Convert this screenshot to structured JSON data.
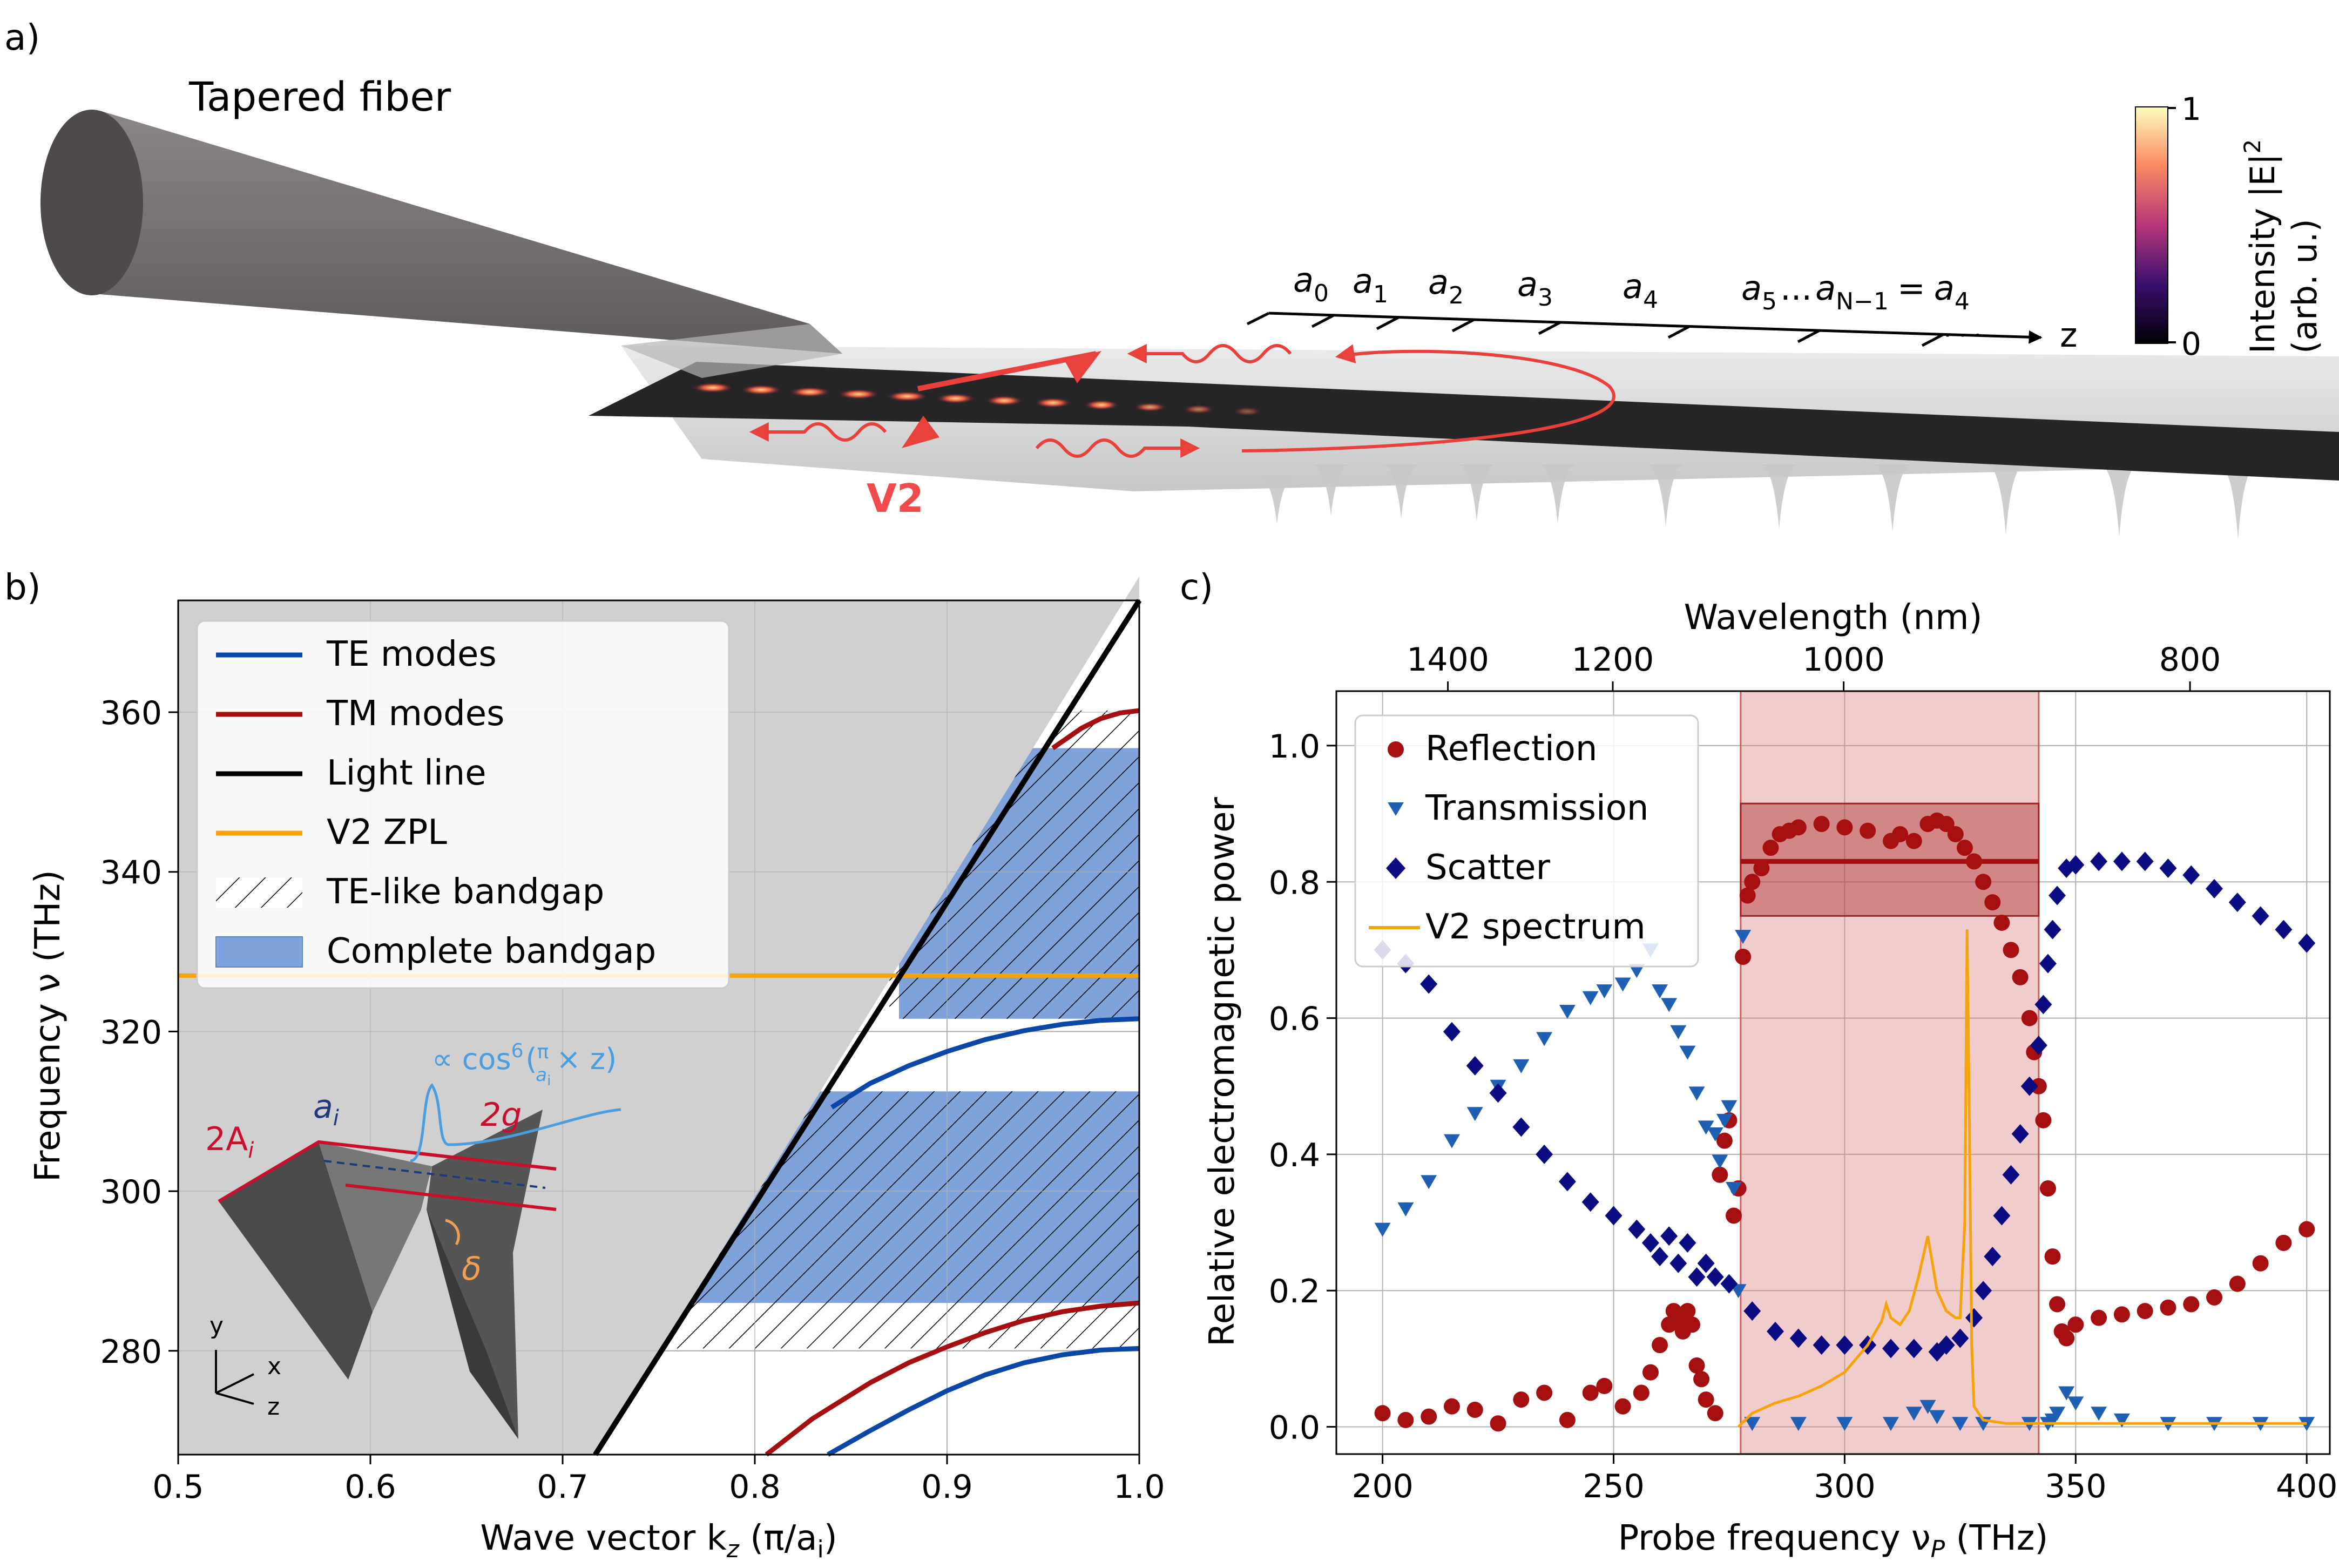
{
  "panel_labels": {
    "a": "a)",
    "b": "b)",
    "c": "c)"
  },
  "panel_a": {
    "fiber_label": "Tapered fiber",
    "emitter_label": "V2",
    "axis_label": "z",
    "ellipsis": "· · ·",
    "lattice_labels": [
      {
        "base": "a",
        "sub": "0"
      },
      {
        "base": "a",
        "sub": "1"
      },
      {
        "base": "a",
        "sub": "2"
      },
      {
        "base": "a",
        "sub": "3"
      },
      {
        "base": "a",
        "sub": "4"
      }
    ],
    "lattice_tail": {
      "a5": "a",
      "a5_sub": "5",
      "dots": "...",
      "aN": "a",
      "aN_sub": "N−1",
      "eq": "=",
      "a4": "a",
      "a4_sub": "4"
    },
    "colorbar": {
      "max_label": "1",
      "min_label": "0",
      "title_line1": "Intensity |E|",
      "title_sup": "2",
      "title_line2": "(arb. u.)"
    },
    "colors": {
      "fiber": "#7a7575",
      "arrow": "#e8413c",
      "v2_text": "#f04a4a"
    }
  },
  "chart_data": [
    {
      "id": "band_diagram",
      "type": "line",
      "xlabel": {
        "main": "Wave vector k",
        "sub": "z",
        "rest": " (π/a",
        "sub2": "i",
        "end": ")"
      },
      "ylabel": "Frequency ν (THz)",
      "xlim": [
        0.5,
        1.0
      ],
      "ylim": [
        267,
        374
      ],
      "xticks": [
        0.5,
        0.6,
        0.7,
        0.8,
        0.9,
        1.0
      ],
      "xtick_labels": [
        "0.5",
        "0.6",
        "0.7",
        "0.8",
        "0.9",
        "1.0"
      ],
      "yticks": [
        280,
        300,
        320,
        340,
        360
      ],
      "ytick_labels": [
        "280",
        "300",
        "320",
        "340",
        "360"
      ],
      "grid": true,
      "light_line": {
        "x": [
          0.717,
          1.0
        ],
        "y": [
          267,
          377
        ]
      },
      "series": [
        {
          "name": "TE band 1",
          "kind": "TE",
          "x": [
            0.838,
            0.86,
            0.88,
            0.9,
            0.92,
            0.94,
            0.96,
            0.98,
            1.0
          ],
          "y": [
            267.0,
            270.0,
            272.6,
            275.0,
            277.0,
            278.5,
            279.5,
            280.1,
            280.3
          ]
        },
        {
          "name": "TM band 1",
          "kind": "TM",
          "x": [
            0.806,
            0.83,
            0.86,
            0.88,
            0.9,
            0.92,
            0.94,
            0.96,
            0.98,
            1.0
          ],
          "y": [
            267.0,
            271.5,
            276.0,
            278.5,
            280.5,
            282.3,
            283.8,
            284.9,
            285.6,
            286.0
          ]
        },
        {
          "name": "TE band 2",
          "kind": "TE",
          "x": [
            0.84,
            0.86,
            0.88,
            0.9,
            0.92,
            0.94,
            0.96,
            0.98,
            1.0
          ],
          "y": [
            310.5,
            313.5,
            315.7,
            317.5,
            319.0,
            320.1,
            320.9,
            321.4,
            321.6
          ]
        },
        {
          "name": "TM band 2",
          "kind": "TM",
          "x": [
            0.955,
            0.97,
            0.98,
            0.99,
            1.0
          ],
          "y": [
            355.5,
            358.0,
            359.2,
            359.9,
            360.2
          ]
        }
      ],
      "zpl": {
        "y": 327.0,
        "x": [
          0.5,
          1.0
        ]
      },
      "te_bandgaps": [
        {
          "x0": 0.735,
          "x1": 1.0,
          "y0": 280.3,
          "y1": 312.5
        },
        {
          "x0": 0.87,
          "x1": 1.0,
          "y0": 321.6,
          "y1": 360.2
        }
      ],
      "complete_bandgaps": [
        {
          "x0": 0.76,
          "x1": 1.0,
          "y0": 286.0,
          "y1": 312.5
        },
        {
          "x0": 0.875,
          "x1": 1.0,
          "y0": 321.6,
          "y1": 355.5
        }
      ],
      "legend": {
        "placement": "top-left",
        "entries": [
          "TE modes",
          "TM modes",
          "Light line",
          "V2 ZPL",
          "TE-like bandgap",
          "Complete bandgap"
        ]
      },
      "inset": {
        "annotation_cos": {
          "pre": "∝ cos",
          "sup": "6",
          "frac_num": "π",
          "frac_den_base": "a",
          "frac_den_sub": "i",
          "post": "× z"
        },
        "label_ai": {
          "base": "a",
          "sub": "i"
        },
        "label_2A": {
          "pre": "2A",
          "sub": "i"
        },
        "label_2g": "2g",
        "label_delta": "δ",
        "axes": {
          "y": "y",
          "x": "x",
          "z": "z"
        }
      },
      "colors": {
        "te": "#0a47a7",
        "tm": "#a50f10",
        "light": "#000000",
        "zpl": "#f5a30a",
        "complete": "#7ea2d9",
        "background": "#d0d0d0"
      }
    },
    {
      "id": "spectrum",
      "type": "scatter",
      "xlabel": {
        "main": "Probe frequency ν",
        "sub": "P",
        "rest": " (THz)"
      },
      "ylabel": "Relative electromagnetic power",
      "top_xlabel": "Wavelength (nm)",
      "xlim": [
        190,
        405
      ],
      "ylim": [
        -0.04,
        1.08
      ],
      "xticks": [
        200,
        250,
        300,
        350,
        400
      ],
      "xtick_labels": [
        "200",
        "250",
        "300",
        "350",
        "400"
      ],
      "yticks": [
        0.0,
        0.2,
        0.4,
        0.6,
        0.8,
        1.0
      ],
      "ytick_labels": [
        "0.0",
        "0.2",
        "0.4",
        "0.6",
        "0.8",
        "1.0"
      ],
      "top_ticks": [
        1400,
        1200,
        1000,
        800
      ],
      "top_tick_labels": [
        "1400",
        "1200",
        "1000",
        "800"
      ],
      "grid": true,
      "bandgap_shade": {
        "x0": 277.5,
        "x1": 342.0
      },
      "reflection_band": {
        "x0": 277.5,
        "x1": 342.0,
        "y0": 0.75,
        "y1": 0.915,
        "mean": 0.83
      },
      "series": [
        {
          "name": "Reflection",
          "marker": "circle",
          "color": "#a50f10",
          "x": [
            200,
            205,
            210,
            215,
            220,
            225,
            230,
            235,
            240,
            245,
            248,
            252,
            256,
            258,
            260,
            262,
            263,
            264,
            265,
            266,
            267,
            268,
            269,
            270,
            272,
            273,
            274,
            275,
            276,
            277,
            278,
            279,
            280,
            282,
            284,
            286,
            288,
            290,
            295,
            300,
            305,
            310,
            312,
            315,
            318,
            320,
            322,
            324,
            326,
            328,
            330,
            332,
            334,
            336,
            338,
            340,
            341,
            342,
            343,
            344,
            345,
            346,
            347,
            348,
            350,
            355,
            360,
            365,
            370,
            375,
            380,
            385,
            390,
            395,
            400
          ],
          "y": [
            0.02,
            0.01,
            0.015,
            0.03,
            0.025,
            0.005,
            0.04,
            0.05,
            0.01,
            0.05,
            0.06,
            0.03,
            0.05,
            0.08,
            0.12,
            0.15,
            0.17,
            0.16,
            0.14,
            0.17,
            0.15,
            0.09,
            0.07,
            0.04,
            0.02,
            0.37,
            0.42,
            0.45,
            0.31,
            0.35,
            0.69,
            0.78,
            0.8,
            0.82,
            0.85,
            0.87,
            0.875,
            0.88,
            0.885,
            0.88,
            0.875,
            0.86,
            0.87,
            0.86,
            0.885,
            0.89,
            0.885,
            0.87,
            0.85,
            0.83,
            0.8,
            0.77,
            0.74,
            0.7,
            0.66,
            0.6,
            0.55,
            0.5,
            0.45,
            0.35,
            0.25,
            0.18,
            0.14,
            0.13,
            0.15,
            0.16,
            0.165,
            0.17,
            0.175,
            0.18,
            0.19,
            0.21,
            0.24,
            0.27,
            0.29
          ]
        },
        {
          "name": "Transmission",
          "marker": "triangle-down",
          "color": "#1f5fb4",
          "x": [
            200,
            205,
            210,
            215,
            220,
            225,
            230,
            235,
            240,
            245,
            248,
            252,
            255,
            258,
            260,
            262,
            264,
            266,
            268,
            270,
            272,
            273,
            274,
            275,
            276,
            277,
            278,
            280,
            290,
            300,
            310,
            315,
            318,
            320,
            325,
            330,
            340,
            344,
            345,
            346,
            348,
            350,
            355,
            360,
            370,
            380,
            390,
            400
          ],
          "y": [
            0.29,
            0.32,
            0.36,
            0.42,
            0.46,
            0.5,
            0.53,
            0.57,
            0.61,
            0.63,
            0.64,
            0.65,
            0.67,
            0.7,
            0.64,
            0.62,
            0.58,
            0.55,
            0.49,
            0.44,
            0.43,
            0.39,
            0.45,
            0.47,
            0.35,
            0.2,
            0.72,
            0.005,
            0.005,
            0.005,
            0.005,
            0.02,
            0.03,
            0.015,
            0.005,
            0.005,
            0.005,
            0.005,
            0.01,
            0.02,
            0.05,
            0.035,
            0.02,
            0.01,
            0.005,
            0.005,
            0.005,
            0.005
          ]
        },
        {
          "name": "Scatter",
          "marker": "diamond",
          "color": "#0c0c82",
          "x": [
            200,
            205,
            210,
            215,
            220,
            225,
            230,
            235,
            240,
            245,
            250,
            255,
            258,
            260,
            262,
            264,
            266,
            268,
            270,
            272,
            275,
            280,
            285,
            290,
            295,
            300,
            305,
            310,
            315,
            320,
            322,
            325,
            328,
            330,
            332,
            334,
            336,
            338,
            340,
            342,
            343,
            344,
            345,
            346,
            348,
            350,
            355,
            360,
            365,
            370,
            375,
            380,
            385,
            390,
            395,
            400
          ],
          "y": [
            0.7,
            0.68,
            0.65,
            0.58,
            0.53,
            0.49,
            0.44,
            0.4,
            0.36,
            0.33,
            0.31,
            0.29,
            0.27,
            0.25,
            0.28,
            0.24,
            0.27,
            0.22,
            0.24,
            0.22,
            0.21,
            0.17,
            0.14,
            0.13,
            0.12,
            0.12,
            0.12,
            0.115,
            0.115,
            0.11,
            0.12,
            0.13,
            0.16,
            0.2,
            0.25,
            0.31,
            0.37,
            0.43,
            0.5,
            0.56,
            0.62,
            0.68,
            0.73,
            0.78,
            0.82,
            0.825,
            0.83,
            0.83,
            0.83,
            0.82,
            0.81,
            0.79,
            0.77,
            0.75,
            0.73,
            0.71
          ]
        },
        {
          "name": "V2 spectrum",
          "marker": "line",
          "color": "#f5a30a",
          "x": [
            277,
            280,
            285,
            290,
            295,
            300,
            305,
            308,
            309,
            310,
            312,
            314,
            316,
            317,
            318,
            319,
            320,
            322,
            324,
            325,
            326,
            326.5,
            327,
            327.5,
            328,
            330,
            335,
            340,
            345,
            350,
            360,
            370,
            380,
            390,
            400
          ],
          "y": [
            0.0,
            0.02,
            0.035,
            0.045,
            0.06,
            0.08,
            0.12,
            0.155,
            0.18,
            0.16,
            0.15,
            0.17,
            0.22,
            0.25,
            0.28,
            0.24,
            0.2,
            0.17,
            0.16,
            0.16,
            0.3,
            0.73,
            0.45,
            0.12,
            0.03,
            0.01,
            0.005,
            0.005,
            0.005,
            0.005,
            0.005,
            0.005,
            0.005,
            0.005,
            0.005
          ]
        }
      ],
      "legend": {
        "placement": "top-left",
        "entries": [
          "Reflection",
          "Transmission",
          "Scatter",
          "V2 spectrum"
        ]
      }
    }
  ]
}
